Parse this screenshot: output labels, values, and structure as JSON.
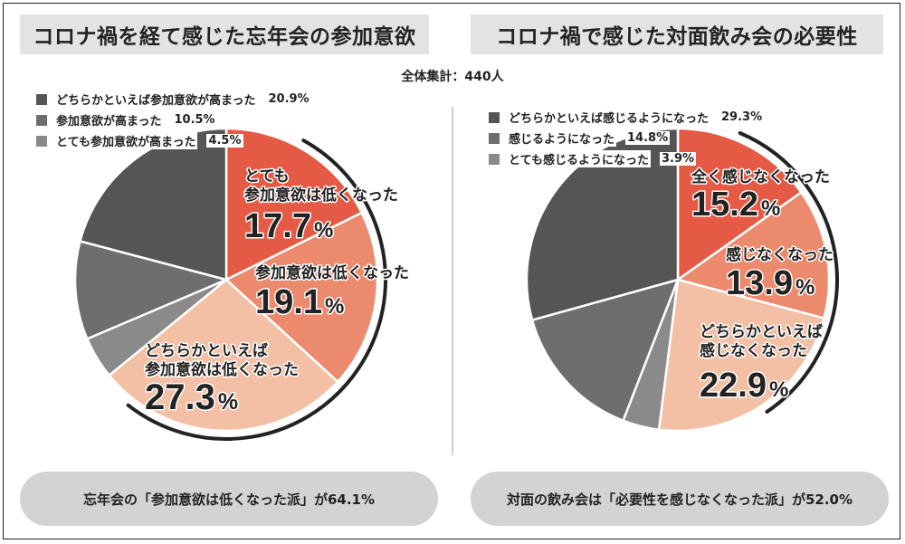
{
  "total_label": "全体集計：440人",
  "colors": {
    "dark": "#555555",
    "mid": "#6e6e6e",
    "light": "#8a8a8a",
    "red": "#e45a45",
    "salmon": "#ec8a6e",
    "peach": "#f3c0a5",
    "title_bg": "#e3e3e3",
    "summary_bg": "#d3d3d3"
  },
  "chart_data": [
    {
      "type": "pie",
      "title": "コロナ禍を経て感じた忘年会の参加意欲",
      "start": "12 o'clock, clockwise",
      "categories": [
        "とても参加意欲は低くなった",
        "参加意欲は低くなった",
        "どちらかといえば参加意欲は低くなった",
        "とても参加意欲が高まった",
        "参加意欲が高まった",
        "どちらかといえば参加意欲が高まった"
      ],
      "values": [
        17.7,
        19.1,
        27.3,
        4.5,
        10.5,
        20.9
      ],
      "slice_labels": [
        [
          "とても",
          "参加意欲は低くなった"
        ],
        [
          "参加意欲は低くなった"
        ],
        [
          "どちらかといえば",
          "参加意欲は低くなった"
        ],
        [],
        [],
        []
      ],
      "slice_pcts": [
        "17.7%",
        "19.1%",
        "27.3%",
        "",
        "",
        ""
      ],
      "legend": [
        {
          "label": "どちらかといえば参加意欲が高まった",
          "value": "20.9%",
          "color": "#555555"
        },
        {
          "label": "参加意欲が高まった",
          "value": "10.5%",
          "color": "#6e6e6e"
        },
        {
          "label": "とても参加意欲が高まった",
          "value": "4.5%",
          "color": "#8a8a8a"
        }
      ],
      "summary": "忘年会の「参加意欲は低くなった派」が64.1%"
    },
    {
      "type": "pie",
      "title": "コロナ禍で感じた対面飲み会の必要性",
      "start": "12 o'clock, clockwise",
      "categories": [
        "全く感じなくなった",
        "感じなくなった",
        "どちらかといえば感じなくなった",
        "とても感じるようになった",
        "感じるようになった",
        "どちらかといえば感じるようになった"
      ],
      "values": [
        15.2,
        13.9,
        22.9,
        3.9,
        14.8,
        29.3
      ],
      "slice_labels": [
        [
          "全く感じなくなった"
        ],
        [
          "感じなくなった"
        ],
        [
          "どちらかといえば",
          "感じなくなった"
        ],
        [],
        [],
        []
      ],
      "slice_pcts": [
        "15.2%",
        "13.9%",
        "22.9%",
        "",
        "",
        ""
      ],
      "legend": [
        {
          "label": "どちらかといえば感じるようになった",
          "value": "29.3%",
          "color": "#555555"
        },
        {
          "label": "感じるようになった",
          "value": "14.8%",
          "color": "#6e6e6e"
        },
        {
          "label": "とても感じるようになった",
          "value": "3.9%",
          "color": "#8a8a8a"
        }
      ],
      "summary": "対面の飲み会は「必要性を感じなくなった派」が52.0%"
    }
  ]
}
